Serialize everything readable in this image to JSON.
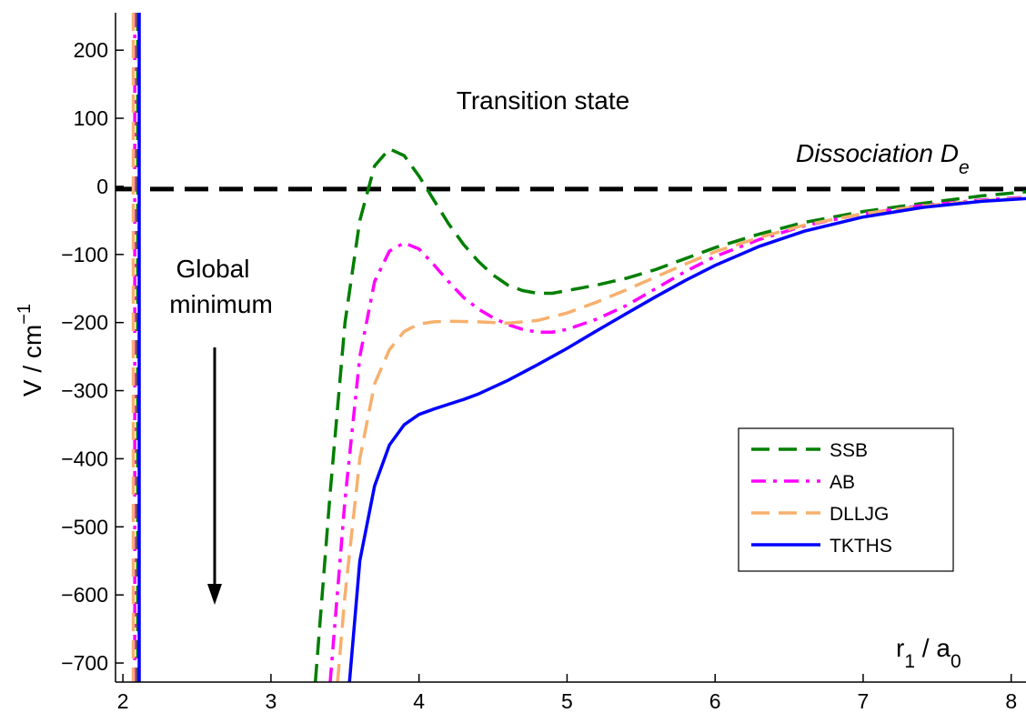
{
  "chart_data": {
    "type": "line",
    "title": "",
    "xlabel": "r1 / a0",
    "xlabel_parts": {
      "main": "r",
      "sub1": "1",
      "slash": " / a",
      "sub2": "0"
    },
    "ylabel": "V / cm⁻¹",
    "ylabel_parts": {
      "main": "V / cm",
      "sup": "−1"
    },
    "xlim": [
      1.95,
      8.1
    ],
    "ylim": [
      -728,
      255
    ],
    "xticks": [
      2,
      3,
      4,
      5,
      6,
      7,
      8
    ],
    "xtick_labels": [
      "2",
      "3",
      "4",
      "5",
      "6",
      "7",
      "8"
    ],
    "yticks": [
      200,
      100,
      0,
      -100,
      -200,
      -300,
      -400,
      -500,
      -600,
      -700
    ],
    "ytick_labels": [
      "200",
      "100",
      "0",
      "−100",
      "−200",
      "−300",
      "−400",
      "−500",
      "−600",
      "−700"
    ],
    "grid": false,
    "legend_position": "lower-right",
    "annotations": {
      "transition": "Transition state",
      "global_line1": "Global",
      "global_line2": "minimum",
      "dissociation": "Dissociation D",
      "dissociation_sub": "e"
    },
    "dissociation_level": -4,
    "series": [
      {
        "name": "SSB",
        "color": "#007f00",
        "style": "dashed",
        "wall_x": 2.1,
        "x": [
          3.3,
          3.4,
          3.5,
          3.6,
          3.7,
          3.8,
          3.9,
          4.0,
          4.1,
          4.2,
          4.3,
          4.4,
          4.5,
          4.6,
          4.7,
          4.8,
          4.9,
          5.0,
          5.2,
          5.4,
          5.6,
          5.8,
          6.0,
          6.3,
          6.6,
          7.0,
          7.4,
          7.8,
          8.1
        ],
        "y": [
          -728,
          -450,
          -200,
          -50,
          30,
          55,
          45,
          15,
          -20,
          -55,
          -85,
          -110,
          -130,
          -145,
          -153,
          -157,
          -157,
          -153,
          -145,
          -135,
          -122,
          -106,
          -90,
          -70,
          -53,
          -37,
          -25,
          -14,
          -8
        ]
      },
      {
        "name": "AB",
        "color": "#ff00ff",
        "style": "dashdot",
        "wall_x": 2.08,
        "x": [
          3.4,
          3.5,
          3.6,
          3.7,
          3.8,
          3.9,
          4.0,
          4.1,
          4.2,
          4.3,
          4.4,
          4.5,
          4.6,
          4.7,
          4.8,
          4.9,
          5.0,
          5.2,
          5.4,
          5.6,
          5.8,
          6.0,
          6.3,
          6.6,
          7.0,
          7.4,
          7.8,
          8.1
        ],
        "y": [
          -728,
          -460,
          -250,
          -140,
          -95,
          -83,
          -92,
          -115,
          -140,
          -163,
          -180,
          -193,
          -203,
          -210,
          -214,
          -214,
          -210,
          -195,
          -175,
          -150,
          -125,
          -103,
          -78,
          -58,
          -40,
          -28,
          -20,
          -16
        ]
      },
      {
        "name": "DLLJG",
        "color": "#f7b06d",
        "style": "dashed",
        "wall_x": 2.07,
        "x": [
          3.45,
          3.5,
          3.6,
          3.7,
          3.8,
          3.9,
          4.0,
          4.1,
          4.2,
          4.4,
          4.6,
          4.8,
          5.0,
          5.2,
          5.4,
          5.6,
          5.8,
          6.0,
          6.3,
          6.6,
          7.0,
          7.4,
          7.8,
          8.1
        ],
        "y": [
          -728,
          -600,
          -400,
          -290,
          -240,
          -213,
          -202,
          -199,
          -198,
          -199,
          -201,
          -197,
          -186,
          -170,
          -152,
          -133,
          -114,
          -96,
          -75,
          -57,
          -40,
          -29,
          -21,
          -17
        ]
      },
      {
        "name": "TKTHS",
        "color": "#0000ff",
        "style": "solid",
        "wall_x": 2.11,
        "x": [
          3.53,
          3.6,
          3.7,
          3.8,
          3.9,
          4.0,
          4.1,
          4.2,
          4.3,
          4.4,
          4.5,
          4.6,
          4.8,
          5.0,
          5.2,
          5.4,
          5.6,
          5.8,
          6.0,
          6.3,
          6.6,
          7.0,
          7.4,
          7.8,
          8.1
        ],
        "y": [
          -728,
          -550,
          -440,
          -380,
          -350,
          -335,
          -327,
          -320,
          -313,
          -305,
          -295,
          -285,
          -262,
          -238,
          -212,
          -187,
          -162,
          -138,
          -116,
          -88,
          -66,
          -45,
          -31,
          -22,
          -18
        ]
      }
    ]
  }
}
